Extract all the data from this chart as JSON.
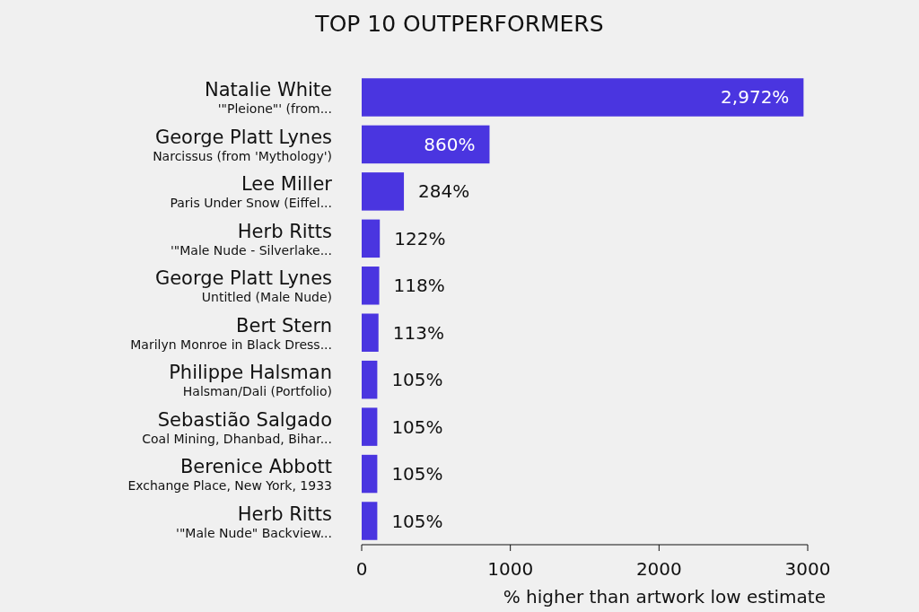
{
  "chart_data": {
    "type": "bar",
    "orientation": "horizontal",
    "title": "TOP 10 OUTPERFORMERS",
    "xlabel": "% higher than artwork low estimate",
    "categories": [
      "Natalie White\n'\"Pleione\"' (from...",
      "George Platt Lynes\nNarcissus (from 'Mythology')",
      "Lee Miller\nParis Under Snow (Eiffel...",
      "Herb Ritts\n'\"Male Nude - Silverlake...",
      "George Platt Lynes\nUntitled (Male Nude)",
      "Bert Stern\nMarilyn Monroe in Black Dress...",
      "Philippe Halsman\nHalsman/Dali (Portfolio)",
      "Sebastião Salgado\nCoal Mining, Dhanbad, Bihar...",
      "Berenice Abbott\nExchange Place, New York, 1933",
      "Herb Ritts\n'\"Male Nude\" Backview..."
    ],
    "values": [
      2972,
      860,
      284,
      122,
      118,
      113,
      105,
      105,
      105,
      105
    ],
    "value_labels": [
      "2,972%",
      "860%",
      "284%",
      "122%",
      "118%",
      "113%",
      "105%",
      "105%",
      "105%",
      "105%"
    ],
    "color": "#4a35e0",
    "xlim": [
      0,
      3000
    ],
    "xticks": [
      0,
      1000,
      2000,
      3000
    ],
    "grid": false
  }
}
